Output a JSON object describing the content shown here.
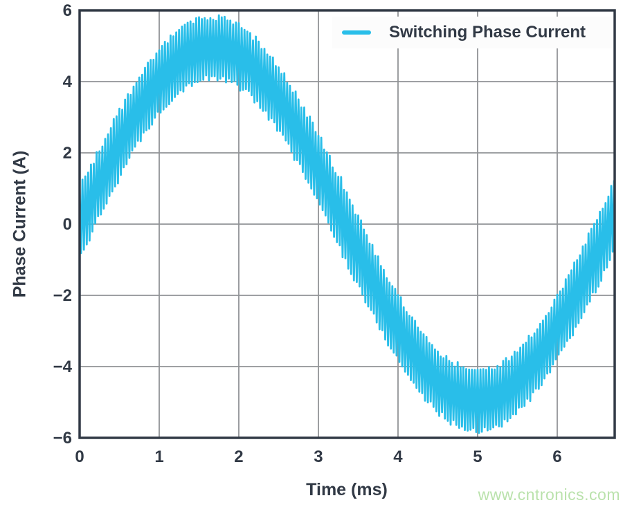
{
  "chart_data": {
    "type": "line",
    "title": "",
    "xlabel": "Time (ms)",
    "ylabel": "Phase Current (A)",
    "xlim": [
      0,
      6.722
    ],
    "ylim": [
      -6,
      6
    ],
    "x_ticks": [
      0,
      1,
      2,
      3,
      4,
      5,
      6
    ],
    "y_ticks": [
      -6,
      -4,
      -2,
      0,
      2,
      4,
      6
    ],
    "grid": true,
    "legend": {
      "position": "top-right",
      "entries": [
        {
          "label": "Switching Phase Current",
          "color": "#29bee9"
        }
      ]
    },
    "series": [
      {
        "name": "Switching Phase Current",
        "synthesis": {
          "fundamental": {
            "shape": "sine",
            "amplitude_A": 4.95,
            "period_ms": 6.67,
            "phase_deg": 0
          },
          "switching_ripple": {
            "shape": "triangle",
            "base_amplitude_A": 1.1,
            "amplitude_droop_at_peaks": 0.15,
            "per_cycle_jitter": 0.2,
            "frequency_cycles_per_ms": 28
          },
          "t_start_ms": 0,
          "t_end_ms": 6.722
        }
      }
    ]
  },
  "watermark": {
    "text": "www.cntronics.com"
  },
  "colors": {
    "series": "#29bee9",
    "axis_text": "#313945",
    "axis_border": "#313945",
    "gridline": "#919396",
    "legend_bg": "#fcfcfc",
    "watermark": "#bae2ac",
    "background": "#ffffff"
  }
}
